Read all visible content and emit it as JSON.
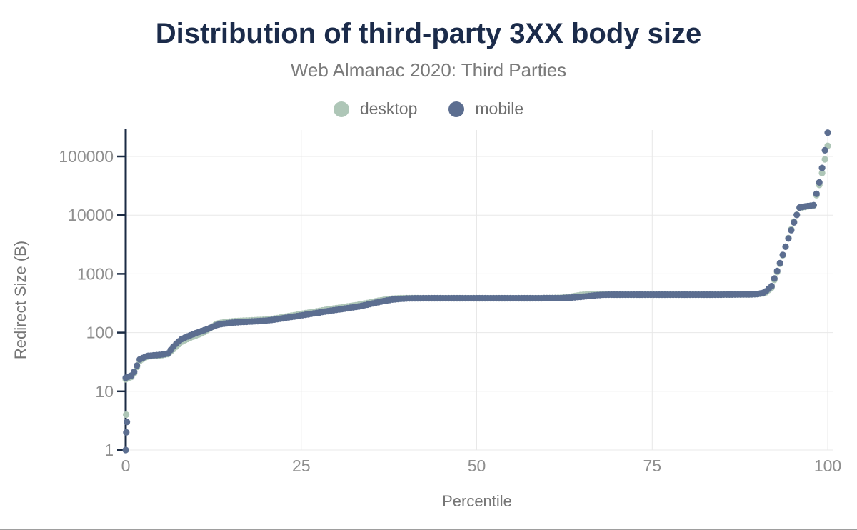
{
  "page": {
    "title": "Distribution of third-party 3XX body size",
    "subtitle": "Web Almanac 2020: Third Parties"
  },
  "colors": {
    "title": "#1b2b4a",
    "subtitle": "#7a7a7a",
    "axis": "#1b2b44",
    "tick_label": "#8f8f8f",
    "axis_title": "#757575",
    "gridline": "#e8e8e8",
    "legend_label": "#6f6f6f",
    "bottom_border": "#9e9e9e",
    "desktop": "#aec6b7",
    "mobile": "#5c6e90"
  },
  "chart_data": {
    "type": "scatter",
    "title": "Distribution of third-party 3XX body size",
    "subtitle": "Web Almanac 2020: Third Parties",
    "xlabel": "Percentile",
    "ylabel": "Redirect Size (B)",
    "x_ticks": [
      0,
      25,
      50,
      75,
      100
    ],
    "y_ticks": [
      1,
      10,
      100,
      1000,
      10000,
      100000
    ],
    "xlim": [
      0,
      100
    ],
    "ylim": [
      1,
      300000
    ],
    "y_scale": "log",
    "grid": true,
    "legend_position": "top",
    "percentiles": [
      0,
      1,
      2,
      3,
      4,
      5,
      6,
      7,
      8,
      9,
      10,
      11,
      12,
      13,
      14,
      15,
      16,
      17,
      18,
      19,
      20,
      21,
      22,
      23,
      24,
      25,
      26,
      27,
      28,
      29,
      30,
      31,
      32,
      33,
      34,
      35,
      36,
      37,
      38,
      39,
      40,
      41,
      42,
      43,
      44,
      45,
      46,
      47,
      48,
      49,
      50,
      51,
      52,
      53,
      54,
      55,
      56,
      57,
      58,
      59,
      60,
      61,
      62,
      63,
      64,
      65,
      66,
      67,
      68,
      69,
      70,
      71,
      72,
      73,
      74,
      75,
      76,
      77,
      78,
      79,
      80,
      81,
      82,
      83,
      84,
      85,
      86,
      87,
      88,
      89,
      90,
      91,
      92,
      93,
      94,
      95,
      96,
      97,
      98,
      99,
      100
    ],
    "series": [
      {
        "name": "desktop",
        "color": "#aec6b7",
        "values": [
          16,
          18,
          33,
          39,
          40,
          41,
          43,
          55,
          70,
          80,
          89,
          99,
          118,
          142,
          150,
          155,
          158,
          160,
          162,
          164,
          167,
          172,
          180,
          189,
          198,
          208,
          218,
          228,
          239,
          250,
          261,
          272,
          283,
          296,
          312,
          330,
          349,
          366,
          378,
          385,
          387,
          386,
          385,
          385,
          385,
          385,
          385,
          385,
          385,
          385,
          385,
          385,
          385,
          385,
          385,
          385,
          385,
          385,
          385,
          385,
          386,
          388,
          392,
          400,
          420,
          440,
          448,
          450,
          448,
          445,
          443,
          443,
          443,
          443,
          443,
          443,
          443,
          443,
          443,
          443,
          443,
          443,
          443,
          443,
          443,
          443,
          444,
          445,
          446,
          448,
          452,
          465,
          580,
          1250,
          2900,
          6800,
          13300,
          14000,
          14600,
          40000,
          152000
        ],
        "extra_points": [
          [
            0.06,
            4
          ]
        ]
      },
      {
        "name": "mobile",
        "color": "#5c6e90",
        "values": [
          17,
          19,
          35,
          40,
          41,
          42,
          44,
          62,
          78,
          88,
          98,
          108,
          120,
          135,
          142,
          147,
          150,
          152,
          155,
          157,
          160,
          165,
          172,
          180,
          188,
          196,
          205,
          214,
          224,
          234,
          244,
          254,
          264,
          276,
          292,
          310,
          330,
          350,
          365,
          374,
          380,
          383,
          384,
          385,
          385,
          385,
          385,
          385,
          385,
          385,
          385,
          385,
          385,
          385,
          385,
          385,
          385,
          385,
          385,
          385,
          386,
          386,
          387,
          392,
          398,
          408,
          420,
          432,
          440,
          443,
          443,
          443,
          443,
          443,
          443,
          443,
          443,
          443,
          443,
          443,
          443,
          443,
          443,
          443,
          443,
          443,
          444,
          445,
          446,
          448,
          452,
          480,
          620,
          1300,
          2900,
          6500,
          13500,
          14200,
          14800,
          45000,
          254000
        ],
        "extra_points": [
          [
            0,
            1
          ],
          [
            0.08,
            2
          ],
          [
            0.16,
            3
          ]
        ]
      }
    ]
  }
}
